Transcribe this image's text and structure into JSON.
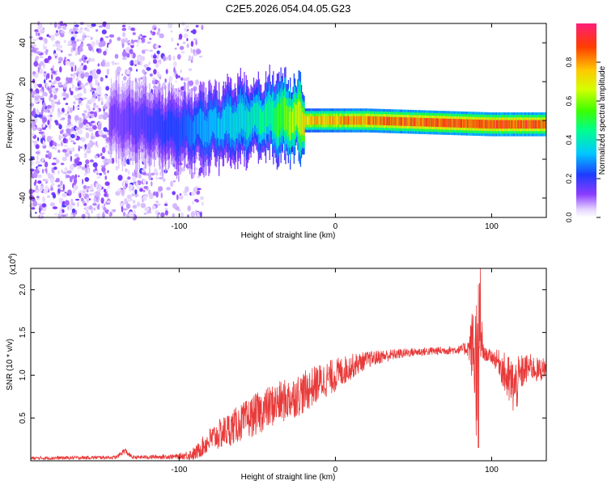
{
  "title": "C2E5.2026.054.04.05.G23",
  "colors": {
    "snr_line": "#e83a3a",
    "frame": "#000000",
    "background": "#ffffff"
  },
  "chart_data": [
    {
      "type": "heatmap",
      "name": "spectrogram",
      "xlabel": "Height of straight line (km)",
      "ylabel": "Frequency (Hz)",
      "xlim": [
        -195,
        135
      ],
      "ylim": [
        -50,
        50
      ],
      "xticks": [
        -100,
        0,
        100
      ],
      "yticks": [
        -40,
        -20,
        0,
        20,
        40
      ],
      "colorbar": {
        "label": "Normalized spectral amplitude",
        "range": [
          0,
          1
        ],
        "ticks": [
          0.0,
          0.2,
          0.4,
          0.6,
          0.8
        ]
      },
      "features": [
        {
          "description": "broadband scattered noise",
          "x_range": [
            -195,
            -100
          ],
          "freq_range": [
            -50,
            50
          ],
          "amplitude": 0.1
        },
        {
          "description": "main signal ridge",
          "x": [
            -140,
            -120,
            -100,
            -80,
            -60,
            -40,
            -20,
            0,
            20,
            60,
            100,
            135
          ],
          "freq": [
            0,
            -2,
            -5,
            -3,
            0,
            2,
            0,
            0,
            0,
            -1,
            -2,
            -2
          ],
          "amplitude": [
            0.15,
            0.2,
            0.25,
            0.35,
            0.4,
            0.5,
            0.8,
            0.85,
            0.9,
            0.95,
            0.95,
            0.95
          ]
        }
      ]
    },
    {
      "type": "line",
      "name": "snr",
      "xlabel": "Height of straight line (km)",
      "ylabel": "SNR (10 * v/v)",
      "yscale_label": "(x10",
      "yscale_exponent": "4",
      "yscale_close": ")",
      "xlim": [
        -195,
        135
      ],
      "ylim": [
        0,
        2.25
      ],
      "xticks": [
        -100,
        0,
        100
      ],
      "yticks": [
        0.5,
        1.0,
        1.5,
        2.0
      ],
      "envelope": {
        "x": [
          -195,
          -140,
          -135,
          -130,
          -100,
          -90,
          -80,
          -70,
          -60,
          -50,
          -40,
          -30,
          -20,
          -10,
          0,
          10,
          20,
          30,
          40,
          50,
          60,
          70,
          80,
          85,
          88,
          90,
          92,
          95,
          100,
          105,
          110,
          115,
          120,
          125,
          130,
          135
        ],
        "center": [
          0.03,
          0.04,
          0.12,
          0.04,
          0.05,
          0.08,
          0.25,
          0.35,
          0.45,
          0.55,
          0.65,
          0.72,
          0.8,
          0.92,
          1.0,
          1.1,
          1.18,
          1.22,
          1.25,
          1.27,
          1.28,
          1.29,
          1.3,
          1.32,
          1.35,
          1.1,
          1.6,
          1.25,
          1.22,
          1.15,
          0.95,
          0.85,
          1.05,
          1.1,
          1.05,
          1.1
        ],
        "spread": [
          0.02,
          0.02,
          0.04,
          0.02,
          0.03,
          0.08,
          0.15,
          0.2,
          0.22,
          0.25,
          0.25,
          0.25,
          0.25,
          0.22,
          0.2,
          0.15,
          0.1,
          0.08,
          0.06,
          0.05,
          0.05,
          0.05,
          0.05,
          0.1,
          0.5,
          0.9,
          0.6,
          0.08,
          0.08,
          0.15,
          0.3,
          0.35,
          0.2,
          0.15,
          0.15,
          0.12
        ]
      }
    }
  ]
}
